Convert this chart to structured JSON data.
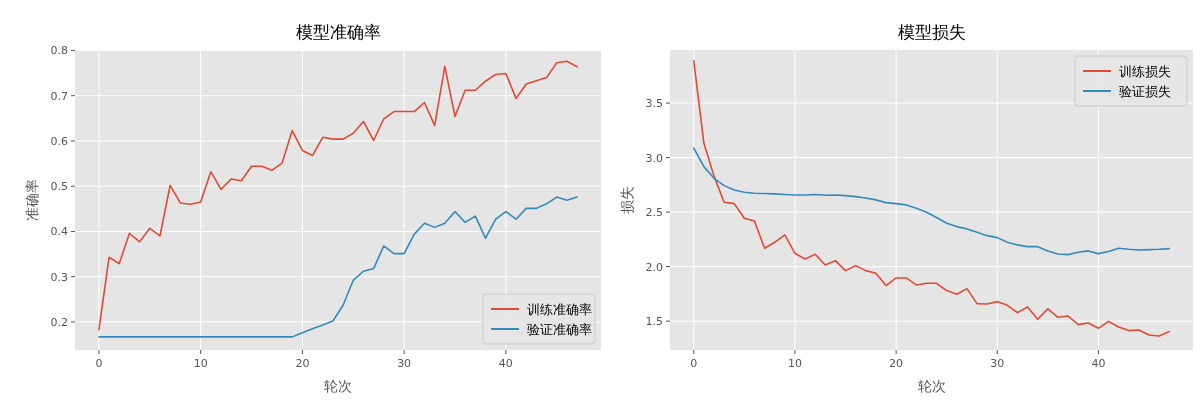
{
  "chart_data": [
    {
      "type": "line",
      "title": "模型准确率",
      "xlabel": "轮次",
      "ylabel": "准确率",
      "x": [
        0,
        1,
        2,
        3,
        4,
        5,
        6,
        7,
        8,
        9,
        10,
        11,
        12,
        13,
        14,
        15,
        16,
        17,
        18,
        19,
        20,
        21,
        22,
        23,
        24,
        25,
        26,
        27,
        28,
        29,
        30,
        31,
        32,
        33,
        34,
        35,
        36,
        37,
        38,
        39,
        40,
        41,
        42,
        43,
        44,
        45,
        46,
        47
      ],
      "series": [
        {
          "name": "训练准确率",
          "color": "#e24a33",
          "values": [
            0.183,
            0.343,
            0.329,
            0.396,
            0.377,
            0.407,
            0.39,
            0.502,
            0.463,
            0.46,
            0.465,
            0.532,
            0.493,
            0.516,
            0.512,
            0.544,
            0.544,
            0.535,
            0.551,
            0.623,
            0.579,
            0.568,
            0.608,
            0.604,
            0.604,
            0.617,
            0.643,
            0.601,
            0.649,
            0.665,
            0.665,
            0.665,
            0.685,
            0.634,
            0.765,
            0.654,
            0.712,
            0.712,
            0.732,
            0.747,
            0.749,
            0.694,
            0.726,
            0.733,
            0.74,
            0.773,
            0.776,
            0.764
          ]
        },
        {
          "name": "验证准确率",
          "color": "#348abd",
          "values": [
            0.167,
            0.167,
            0.167,
            0.167,
            0.167,
            0.167,
            0.167,
            0.167,
            0.167,
            0.167,
            0.167,
            0.167,
            0.167,
            0.167,
            0.167,
            0.167,
            0.167,
            0.167,
            0.167,
            0.167,
            0.176,
            0.185,
            0.193,
            0.202,
            0.237,
            0.292,
            0.312,
            0.318,
            0.368,
            0.351,
            0.351,
            0.394,
            0.418,
            0.409,
            0.418,
            0.444,
            0.42,
            0.434,
            0.385,
            0.427,
            0.444,
            0.427,
            0.451,
            0.451,
            0.461,
            0.476,
            0.469,
            0.476
          ]
        }
      ],
      "xlim": [
        -2.35,
        49.35
      ],
      "xticks": [
        0,
        10,
        20,
        30,
        40
      ],
      "ylim": [
        0.138,
        0.801
      ],
      "yticks": [
        0.2,
        0.3,
        0.4,
        0.5,
        0.6,
        0.7,
        0.8
      ],
      "grid": true,
      "legend": "bottom right"
    },
    {
      "type": "line",
      "title": "模型损失",
      "xlabel": "轮次",
      "ylabel": "损失",
      "x": [
        0,
        1,
        2,
        3,
        4,
        5,
        6,
        7,
        8,
        9,
        10,
        11,
        12,
        13,
        14,
        15,
        16,
        17,
        18,
        19,
        20,
        21,
        22,
        23,
        24,
        25,
        26,
        27,
        28,
        29,
        30,
        31,
        32,
        33,
        34,
        35,
        36,
        37,
        38,
        39,
        40,
        41,
        42,
        43,
        44,
        45,
        46,
        47
      ],
      "series": [
        {
          "name": "训练损失",
          "color": "#e24a33",
          "values": [
            3.887,
            3.131,
            2.83,
            2.59,
            2.578,
            2.443,
            2.419,
            2.168,
            2.223,
            2.291,
            2.122,
            2.07,
            2.113,
            2.015,
            2.055,
            1.963,
            2.009,
            1.963,
            1.939,
            1.826,
            1.896,
            1.896,
            1.832,
            1.847,
            1.847,
            1.78,
            1.746,
            1.798,
            1.66,
            1.657,
            1.679,
            1.645,
            1.578,
            1.63,
            1.517,
            1.612,
            1.535,
            1.547,
            1.468,
            1.483,
            1.434,
            1.498,
            1.446,
            1.413,
            1.419,
            1.373,
            1.364,
            1.404
          ]
        },
        {
          "name": "验证损失",
          "color": "#348abd",
          "values": [
            3.086,
            2.917,
            2.81,
            2.743,
            2.703,
            2.682,
            2.673,
            2.67,
            2.667,
            2.661,
            2.657,
            2.657,
            2.661,
            2.654,
            2.657,
            2.651,
            2.642,
            2.63,
            2.612,
            2.587,
            2.578,
            2.566,
            2.535,
            2.498,
            2.45,
            2.398,
            2.367,
            2.346,
            2.315,
            2.284,
            2.266,
            2.223,
            2.199,
            2.183,
            2.183,
            2.144,
            2.116,
            2.11,
            2.131,
            2.144,
            2.119,
            2.138,
            2.168,
            2.159,
            2.153,
            2.156,
            2.159,
            2.165
          ]
        }
      ],
      "xlim": [
        -2.35,
        49.35
      ],
      "xticks": [
        0,
        10,
        20,
        30,
        40
      ],
      "ylim": [
        1.235,
        3.987
      ],
      "yticks": [
        1.5,
        {
          "value": 2,
          "label": "2.0"
        },
        2.5,
        {
          "value": 3,
          "label": "3.0"
        },
        3.5
      ],
      "grid": true,
      "legend": "top right"
    }
  ]
}
